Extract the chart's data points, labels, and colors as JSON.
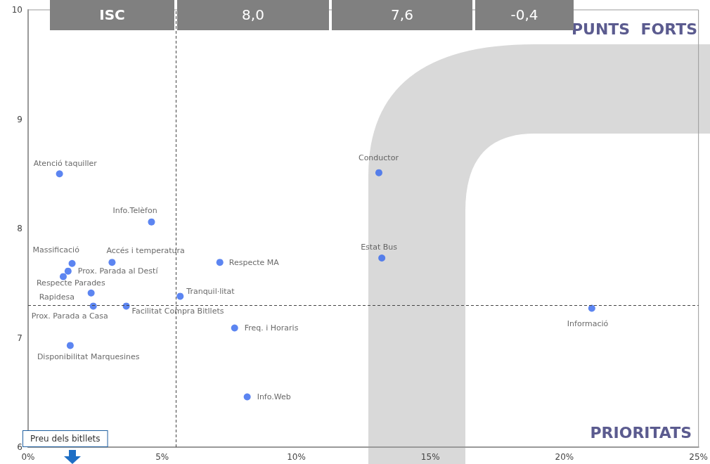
{
  "chart_data": {
    "type": "scatter",
    "x": [
      1.17,
      4.6,
      1.64,
      3.13,
      1.49,
      1.31,
      2.35,
      2.43,
      3.66,
      5.67,
      7.15,
      7.7,
      8.17,
      1.57,
      13.08,
      13.19,
      21.02
    ],
    "values": [
      8.5,
      8.06,
      7.68,
      7.69,
      7.61,
      7.56,
      7.41,
      7.29,
      7.29,
      7.38,
      7.69,
      7.09,
      6.46,
      6.93,
      8.51,
      7.73,
      7.27
    ],
    "color": "#3366ee",
    "marker": "circle",
    "grid": false,
    "xlim": [
      0,
      25
    ],
    "xticks": [
      {
        "value": 0,
        "label": "0%"
      },
      {
        "value": 5,
        "label": "5%"
      },
      {
        "value": 10,
        "label": "10%"
      },
      {
        "value": 15,
        "label": "15%"
      },
      {
        "value": 20,
        "label": "20%"
      },
      {
        "value": 25,
        "label": "25%"
      }
    ],
    "ylim": [
      6,
      10
    ],
    "yticks": [
      6,
      7,
      8,
      9,
      10
    ],
    "ref_lines": [
      {
        "axis": "x",
        "value": 5.5,
        "line_style": "dashed",
        "color": "#444444"
      },
      {
        "axis": "y",
        "value": 7.3,
        "line_style": "dashed",
        "color": "#444444"
      }
    ],
    "annotations": [
      "ISC",
      "8,0",
      "7,6",
      "-0,4",
      "PUNTS  FORTS",
      "PRIORITATS",
      "Preu dels bitllets",
      {
        "text": "Atenció taquiller",
        "x": 1.17,
        "y": 8.5
      },
      {
        "text": "Info.Telèfon",
        "x": 4.6,
        "y": 8.06
      },
      {
        "text": "Massificació",
        "x": 1.64,
        "y": 7.68
      },
      {
        "text": "Accés i temperatura",
        "x": 3.13,
        "y": 7.69
      },
      {
        "text": "Prox. Parada al Destí",
        "x": 1.49,
        "y": 7.61
      },
      {
        "text": "Respecte Parades",
        "x": 1.31,
        "y": 7.56
      },
      {
        "text": "Rapidesa",
        "x": 2.35,
        "y": 7.41
      },
      {
        "text": "Prox. Parada a Casa",
        "x": 2.43,
        "y": 7.29
      },
      {
        "text": "Facilitat Compra Bitllets",
        "x": 3.66,
        "y": 7.29
      },
      {
        "text": "Tranquil·litat",
        "x": 5.67,
        "y": 7.38
      },
      {
        "text": "Respecte MA",
        "x": 7.15,
        "y": 7.69
      },
      {
        "text": "Freq. i Horaris",
        "x": 7.7,
        "y": 7.09
      },
      {
        "text": "Info.Web",
        "x": 8.17,
        "y": 6.46
      },
      {
        "text": "Disponibilitat Marquesines",
        "x": 1.57,
        "y": 6.93
      },
      {
        "text": "Conductor",
        "x": 13.08,
        "y": 8.51
      },
      {
        "text": "Estat Bus",
        "x": 13.19,
        "y": 7.73
      },
      {
        "text": "Informació",
        "x": 21.02,
        "y": 7.27
      }
    ]
  }
}
